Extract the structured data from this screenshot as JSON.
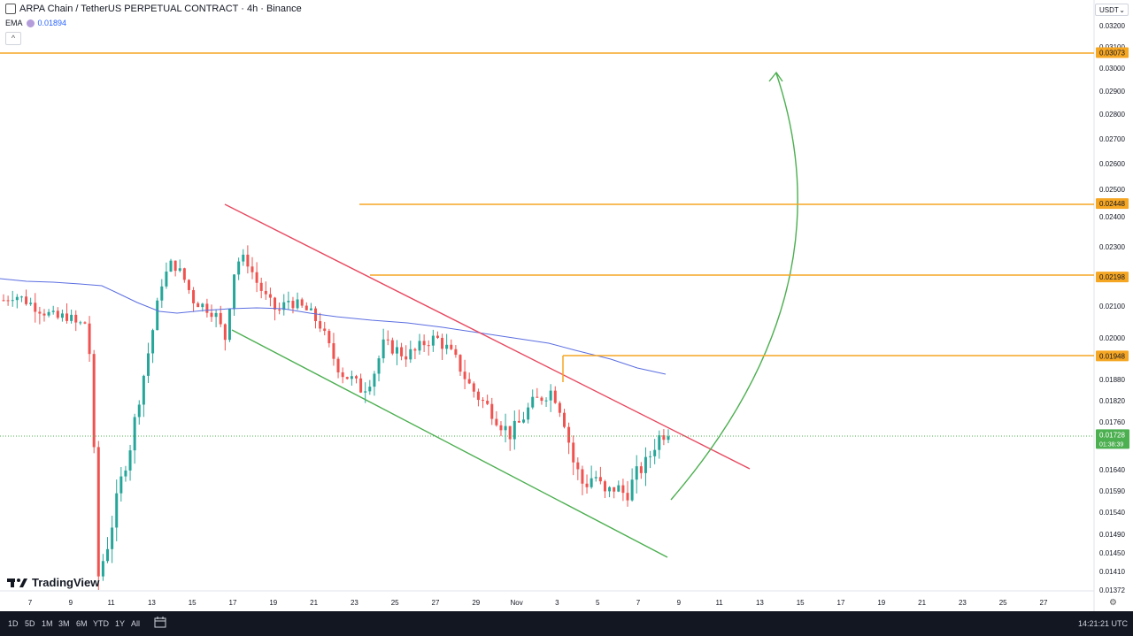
{
  "header": {
    "symbol_title": "ARPA Chain / TetherUS PERPETUAL CONTRACT · 4h · Binance",
    "ema_label": "EMA",
    "ema_value": "0.01894",
    "currency": "USDT"
  },
  "chart_data": {
    "type": "candlestick",
    "title": "ARPA Chain / TetherUS PERPETUAL CONTRACT · 4h · Binance",
    "ylim": [
      0.01372,
      0.0315
    ],
    "y_ticks": [
      "0.03200",
      "0.03100",
      "0.03000",
      "0.02900",
      "0.02800",
      "0.02700",
      "0.02600",
      "0.02500",
      "0.02400",
      "0.02300",
      "0.02100",
      "0.02000",
      "0.01880",
      "0.01820",
      "0.01760",
      "0.01640",
      "0.01590",
      "0.01540",
      "0.01490",
      "0.01450",
      "0.01410",
      "0.01372"
    ],
    "x_ticks": [
      "7",
      "9",
      "11",
      "13",
      "15",
      "17",
      "19",
      "21",
      "23",
      "25",
      "27",
      "29",
      "Nov",
      "3",
      "5",
      "7",
      "9",
      "11",
      "13",
      "15",
      "17",
      "19",
      "21",
      "23",
      "25",
      "27"
    ],
    "last_price": "0.01728",
    "countdown": "01:38:39",
    "horizontal_levels": [
      "0.03073",
      "0.02448",
      "0.02198",
      "0.01948"
    ],
    "colors": {
      "up": "#26a69a",
      "down": "#ef5350",
      "ema": "#5b6ee1",
      "levels": "#f5a623",
      "resistance": "#e8485f",
      "support": "#4caf50",
      "arrow": "#4caf50",
      "last": "#4caf50"
    },
    "price_path": [
      0.0212,
      0.0214,
      0.0212,
      0.021,
      0.0208,
      0.0206,
      0.0207,
      0.0204,
      0.0205,
      0.014,
      0.0148,
      0.016,
      0.017,
      0.0185,
      0.02,
      0.0218,
      0.0225,
      0.022,
      0.0212,
      0.021,
      0.0208,
      0.02,
      0.0225,
      0.0226,
      0.0218,
      0.0212,
      0.0208,
      0.0212,
      0.021,
      0.0208,
      0.0204,
      0.0196,
      0.019,
      0.0188,
      0.0185,
      0.0189,
      0.0198,
      0.0197,
      0.0195,
      0.0196,
      0.0199,
      0.02,
      0.0197,
      0.0193,
      0.0187,
      0.0183,
      0.018,
      0.0176,
      0.0173,
      0.0176,
      0.0181,
      0.0183,
      0.0185,
      0.0178,
      0.0166,
      0.016,
      0.0163,
      0.0158,
      0.016,
      0.0158,
      0.0163,
      0.0166,
      0.0172,
      0.0174
    ]
  },
  "axis": {
    "time_utc": "14:21:21 UTC"
  },
  "toolbar": {
    "timeframes": [
      "1D",
      "5D",
      "1M",
      "3M",
      "6M",
      "YTD",
      "1Y",
      "All"
    ]
  },
  "brand": {
    "name": "TradingView"
  }
}
